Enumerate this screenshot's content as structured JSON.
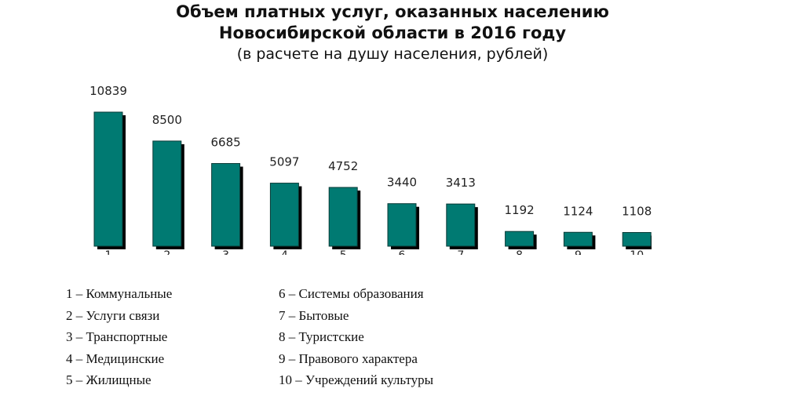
{
  "title_line1": "Объем платных услуг, оказанных населению",
  "title_line2": "Новосибирской области в 2016 году",
  "subtitle": "(в расчете на душу населения, рублей)",
  "chart_data": {
    "type": "bar",
    "title": "Объем платных услуг, оказанных населению Новосибирской области в 2016 году",
    "subtitle": "(в расчете на душу населения, рублей)",
    "categories": [
      "1",
      "2",
      "3",
      "4",
      "5",
      "6",
      "7",
      "8",
      "9",
      "10"
    ],
    "values": [
      10839,
      8500,
      6685,
      5097,
      4752,
      3440,
      3413,
      1192,
      1124,
      1108
    ],
    "value_labels": [
      "10839",
      "8500",
      "6685",
      "5097",
      "4752",
      "3440",
      "3413",
      "1192",
      "1124",
      "1108"
    ],
    "ylim": [
      0,
      10839
    ],
    "grid": false,
    "bar_color": "#007a72",
    "shadow_color": "#000000"
  },
  "legend": [
    "1 – Коммунальные",
    "2 – Услуги связи",
    "3 – Транспортные",
    "4 – Медицинские",
    "5 – Жилищные",
    "6 – Системы образования",
    "7 – Бытовые",
    "8 – Туристские",
    "9 – Правового характера",
    "10 – Учреждений культуры"
  ]
}
